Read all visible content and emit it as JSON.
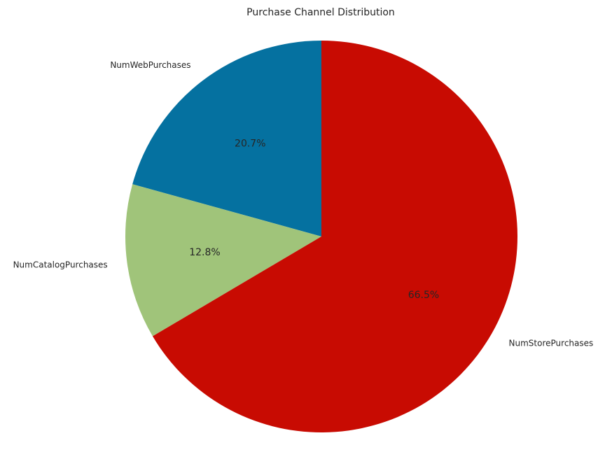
{
  "chart_data": {
    "type": "pie",
    "title": "Purchase Channel Distribution",
    "categories": [
      "NumWebPurchases",
      "NumCatalogPurchases",
      "NumStorePurchases"
    ],
    "values": [
      20.7,
      12.8,
      66.5
    ],
    "percent_labels": [
      "20.7%",
      "12.8%",
      "66.5%"
    ],
    "colors": [
      "#0571a0",
      "#a0c47a",
      "#c80b02"
    ],
    "start_angle_deg": 90,
    "direction": "counterclockwise",
    "legend": "none"
  }
}
